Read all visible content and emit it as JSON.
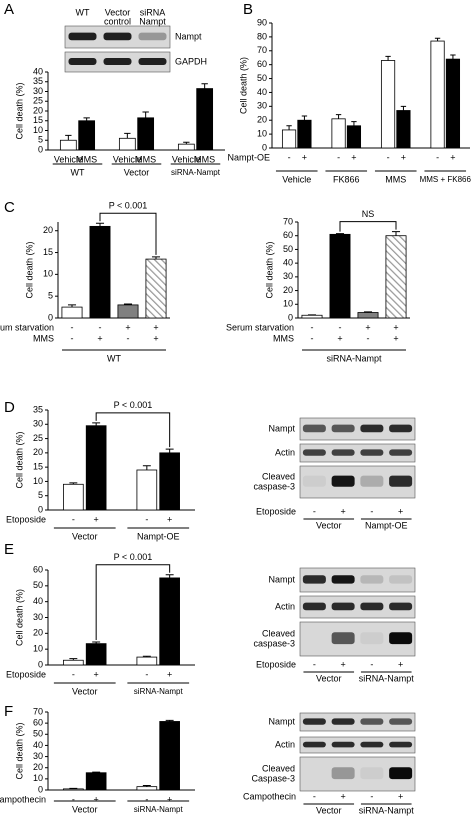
{
  "panel_labels": [
    "A",
    "B",
    "C",
    "D",
    "E",
    "F"
  ],
  "blots": [
    {
      "lanes": [
        [
          "WT"
        ],
        [
          "Vector",
          "control"
        ],
        [
          "siRNA",
          "Nampt"
        ]
      ],
      "rows": [
        [
          "Nampt"
        ],
        [
          "GAPDH"
        ]
      ]
    },
    {
      "rows": [
        [
          "Nampt"
        ],
        [
          "Actin"
        ],
        [
          "Cleaved",
          "caspase-3"
        ]
      ],
      "treatment": "Etoposide",
      "signs": [
        "-",
        "+",
        "-",
        "+"
      ],
      "groups": [
        "Vector",
        "Nampt-OE"
      ]
    },
    {
      "rows": [
        [
          "Nampt"
        ],
        [
          "Actin"
        ],
        [
          "Cleaved",
          "caspase-3"
        ]
      ],
      "treatment": "Etoposide",
      "signs": [
        "-",
        "+",
        "-",
        "+"
      ],
      "groups": [
        "Vector",
        "siRNA-Nampt"
      ]
    },
    {
      "rows": [
        [
          "Nampt"
        ],
        [
          "Actin"
        ],
        [
          "Cleaved",
          "Caspase-3"
        ]
      ],
      "treatment": "Campothecin",
      "signs": [
        "-",
        "+",
        "-",
        "+"
      ],
      "groups": [
        "Vector",
        "siRNA-Nampt"
      ]
    }
  ],
  "chart_data": [
    {
      "type": "bar",
      "ylabel": "Cell death (%)",
      "categories": [
        "WT",
        "Vector",
        "siRNA-Nampt"
      ],
      "series": [
        {
          "name": "Vehicle",
          "color": "#ffffff",
          "values": [
            5,
            6,
            3
          ],
          "errors": [
            2.5,
            2.5,
            1
          ]
        },
        {
          "name": "MMS",
          "color": "#000000",
          "values": [
            15,
            16.5,
            31.5
          ],
          "errors": [
            1.5,
            3,
            2.5
          ]
        }
      ],
      "ylim": [
        0,
        40
      ],
      "yticks": [
        0,
        5,
        10,
        15,
        20,
        25,
        30,
        35,
        40
      ]
    },
    {
      "type": "bar",
      "ylabel": "Cell death (%)",
      "categories": [
        "Vehicle",
        "FK866",
        "MMS",
        "MMS + FK866"
      ],
      "row_label": "Nampt-OE",
      "series": [
        {
          "name": "-",
          "color": "#ffffff",
          "values": [
            13,
            21,
            63,
            77
          ],
          "errors": [
            3,
            3,
            3,
            2
          ]
        },
        {
          "name": "+",
          "color": "#000000",
          "values": [
            20,
            16,
            27,
            64
          ],
          "errors": [
            3,
            3,
            3,
            3
          ]
        }
      ],
      "ylim": [
        0,
        90
      ],
      "yticks": [
        0,
        10,
        20,
        30,
        40,
        50,
        60,
        70,
        80,
        90
      ]
    },
    {
      "type": "bar",
      "ylabel": "Cell death (%)",
      "values": [
        2.5,
        21,
        3,
        13.5
      ],
      "errors": [
        0.5,
        0.7,
        0.2,
        0.5
      ],
      "colors": [
        "#ffffff",
        "#000000",
        "#808080",
        "#ffffff"
      ],
      "hatched": [
        false,
        false,
        false,
        true
      ],
      "conditions": [
        {
          "label": "Serum starvation",
          "signs": [
            "-",
            "-",
            "+",
            "+"
          ]
        },
        {
          "label": "MMS",
          "signs": [
            "-",
            "+",
            "-",
            "+"
          ]
        }
      ],
      "group_label": "WT",
      "annotation": "P < 0.001",
      "ylim": [
        0,
        22
      ],
      "yticks": [
        0,
        5,
        10,
        15,
        20
      ]
    },
    {
      "type": "bar",
      "ylabel": "Cell death (%)",
      "values": [
        2,
        61,
        4,
        60
      ],
      "errors": [
        0.3,
        0.5,
        0.5,
        3
      ],
      "colors": [
        "#ffffff",
        "#000000",
        "#808080",
        "#ffffff"
      ],
      "hatched": [
        false,
        false,
        false,
        true
      ],
      "conditions": [
        {
          "label": "Serum starvation",
          "signs": [
            "-",
            "-",
            "+",
            "+"
          ]
        },
        {
          "label": "MMS",
          "signs": [
            "-",
            "+",
            "-",
            "+"
          ]
        }
      ],
      "group_label": "siRNA-Nampt",
      "annotation": "NS",
      "ylim": [
        0,
        70
      ],
      "yticks": [
        0,
        10,
        20,
        30,
        40,
        50,
        60,
        70
      ]
    },
    {
      "type": "bar",
      "ylabel": "Cell death (%)",
      "categories": [
        "Vector",
        "Nampt-OE"
      ],
      "row_label": "Etoposide",
      "series": [
        {
          "name": "-",
          "color": "#ffffff",
          "values": [
            9,
            14
          ],
          "errors": [
            0.5,
            1.5
          ]
        },
        {
          "name": "+",
          "color": "#000000",
          "values": [
            29.5,
            20
          ],
          "errors": [
            1,
            1.3
          ]
        }
      ],
      "annotation": "P < 0.001",
      "ylim": [
        0,
        35
      ],
      "yticks": [
        0,
        5,
        10,
        15,
        20,
        25,
        30,
        35
      ]
    },
    {
      "type": "bar",
      "ylabel": "Cell death (%)",
      "categories": [
        "Vector",
        "siRNA-Nampt"
      ],
      "row_label": "Etoposide",
      "series": [
        {
          "name": "-",
          "color": "#ffffff",
          "values": [
            3,
            5
          ],
          "errors": [
            1,
            0.5
          ]
        },
        {
          "name": "+",
          "color": "#000000",
          "values": [
            13.5,
            55
          ],
          "errors": [
            1,
            2
          ]
        }
      ],
      "annotation": "P < 0.001",
      "ylim": [
        0,
        60
      ],
      "yticks": [
        0,
        10,
        20,
        30,
        40,
        50,
        60
      ]
    },
    {
      "type": "bar",
      "ylabel": "Cell death (%)",
      "categories": [
        "Vector",
        "siRNA-Nampt"
      ],
      "row_label": "Campothecin",
      "series": [
        {
          "name": "-",
          "color": "#ffffff",
          "values": [
            1,
            3
          ],
          "errors": [
            0.5,
            1
          ]
        },
        {
          "name": "+",
          "color": "#000000",
          "values": [
            15.5,
            61.5
          ],
          "errors": [
            0.5,
            1
          ]
        }
      ],
      "ylim": [
        0,
        70
      ],
      "yticks": [
        0,
        10,
        20,
        30,
        40,
        50,
        60,
        70
      ]
    }
  ]
}
